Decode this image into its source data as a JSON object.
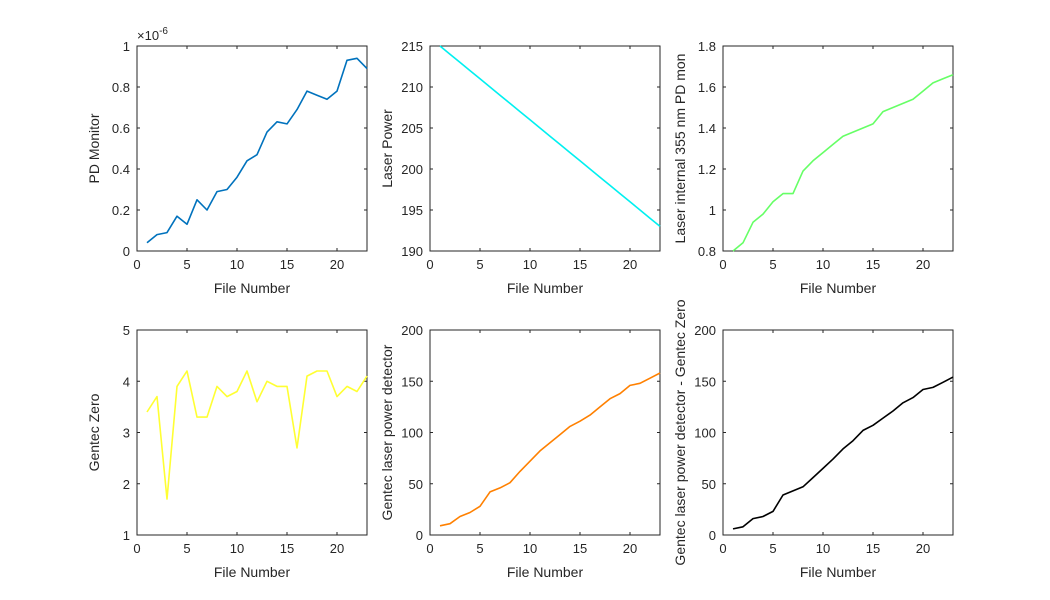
{
  "chart_data": [
    {
      "type": "line",
      "xlabel": "File Number",
      "ylabel": "PD Monitor",
      "xlim": [
        0,
        23
      ],
      "ylim": [
        0,
        1
      ],
      "xticks": [
        "0",
        "5",
        "10",
        "15",
        "20"
      ],
      "yticks": [
        "0",
        "0.2",
        "0.4",
        "0.6",
        "0.8",
        "1"
      ],
      "exponent_label": "×10",
      "exponent_power": "-6",
      "color": "#0072BD",
      "x": [
        1,
        2,
        3,
        4,
        5,
        6,
        7,
        8,
        9,
        10,
        11,
        12,
        13,
        14,
        15,
        16,
        17,
        18,
        19,
        20,
        21,
        22,
        23
      ],
      "y": [
        0.04,
        0.08,
        0.09,
        0.17,
        0.13,
        0.25,
        0.2,
        0.29,
        0.3,
        0.36,
        0.44,
        0.47,
        0.58,
        0.63,
        0.62,
        0.69,
        0.78,
        0.76,
        0.74,
        0.78,
        0.93,
        0.94,
        0.89
      ]
    },
    {
      "type": "line",
      "xlabel": "File Number",
      "ylabel": "Laser Power",
      "xlim": [
        0,
        23
      ],
      "ylim": [
        190,
        215
      ],
      "xticks": [
        "0",
        "5",
        "10",
        "15",
        "20"
      ],
      "yticks": [
        "190",
        "195",
        "200",
        "205",
        "210",
        "215"
      ],
      "color": "#00F0F0",
      "x": [
        1,
        2,
        3,
        4,
        5,
        6,
        7,
        8,
        9,
        10,
        11,
        12,
        13,
        14,
        15,
        16,
        17,
        18,
        19,
        20,
        21,
        22,
        23
      ],
      "y": [
        215,
        214,
        213,
        212,
        211,
        210,
        209,
        208,
        207,
        206,
        205,
        204,
        203,
        202,
        201,
        200,
        199,
        198,
        197,
        196,
        195,
        194,
        193
      ]
    },
    {
      "type": "line",
      "xlabel": "File Number",
      "ylabel": "Laser internal 355 nm PD mon",
      "xlim": [
        0,
        23
      ],
      "ylim": [
        0.8,
        1.8
      ],
      "xticks": [
        "0",
        "5",
        "10",
        "15",
        "20"
      ],
      "yticks": [
        "0.8",
        "1",
        "1.2",
        "1.4",
        "1.6",
        "1.8"
      ],
      "color": "#66FF66",
      "x": [
        1,
        2,
        3,
        4,
        5,
        6,
        7,
        8,
        9,
        10,
        11,
        12,
        13,
        14,
        15,
        16,
        17,
        18,
        19,
        20,
        21,
        22,
        23
      ],
      "y": [
        0.8,
        0.84,
        0.94,
        0.98,
        1.04,
        1.08,
        1.08,
        1.19,
        1.24,
        1.28,
        1.32,
        1.36,
        1.38,
        1.4,
        1.42,
        1.48,
        1.5,
        1.52,
        1.54,
        1.58,
        1.62,
        1.64,
        1.66
      ]
    },
    {
      "type": "line",
      "xlabel": "File Number",
      "ylabel": "Gentec Zero",
      "xlim": [
        0,
        23
      ],
      "ylim": [
        1,
        5
      ],
      "xticks": [
        "0",
        "5",
        "10",
        "15",
        "20"
      ],
      "yticks": [
        "1",
        "2",
        "3",
        "4",
        "5"
      ],
      "color": "#FFFF33",
      "x": [
        1,
        2,
        3,
        4,
        5,
        6,
        7,
        8,
        9,
        10,
        11,
        12,
        13,
        14,
        15,
        16,
        17,
        18,
        19,
        20,
        21,
        22,
        23
      ],
      "y": [
        3.4,
        3.7,
        1.7,
        3.9,
        4.2,
        3.3,
        3.3,
        3.9,
        3.7,
        3.8,
        4.2,
        3.6,
        4.0,
        3.9,
        3.9,
        2.7,
        4.1,
        4.2,
        4.2,
        3.7,
        3.9,
        3.8,
        4.1
      ]
    },
    {
      "type": "line",
      "xlabel": "File Number",
      "ylabel": "Gentec laser power detector",
      "xlim": [
        0,
        23
      ],
      "ylim": [
        0,
        200
      ],
      "xticks": [
        "0",
        "5",
        "10",
        "15",
        "20"
      ],
      "yticks": [
        "0",
        "50",
        "100",
        "150",
        "200"
      ],
      "color": "#FF8000",
      "x": [
        1,
        2,
        3,
        4,
        5,
        6,
        7,
        8,
        9,
        10,
        11,
        12,
        13,
        14,
        15,
        16,
        17,
        18,
        19,
        20,
        21,
        22,
        23
      ],
      "y": [
        9,
        11,
        18,
        22,
        28,
        42,
        46,
        51,
        62,
        72,
        82,
        90,
        98,
        106,
        111,
        117,
        125,
        133,
        138,
        146,
        148,
        153,
        158
      ]
    },
    {
      "type": "line",
      "xlabel": "File Number",
      "ylabel": "Gentec laser power detector - Gentec Zero",
      "xlim": [
        0,
        23
      ],
      "ylim": [
        0,
        200
      ],
      "xticks": [
        "0",
        "5",
        "10",
        "15",
        "20"
      ],
      "yticks": [
        "0",
        "50",
        "100",
        "150",
        "200"
      ],
      "color": "#000000",
      "x": [
        1,
        2,
        3,
        4,
        5,
        6,
        7,
        8,
        9,
        10,
        11,
        12,
        13,
        14,
        15,
        16,
        17,
        18,
        19,
        20,
        21,
        22,
        23
      ],
      "y": [
        6,
        8,
        16,
        18,
        23,
        39,
        43,
        47,
        56,
        65,
        74,
        84,
        92,
        102,
        107,
        114,
        121,
        129,
        134,
        142,
        144,
        149,
        154
      ]
    }
  ]
}
